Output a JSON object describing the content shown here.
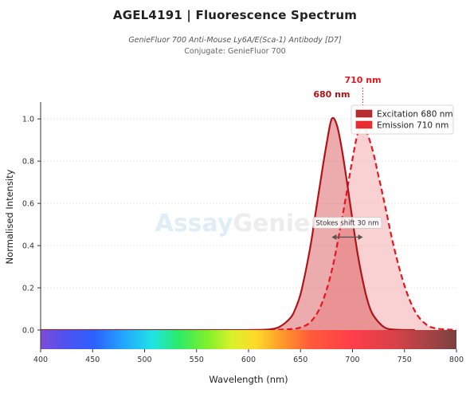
{
  "header": {
    "title": "AGEL4191  |  Fluorescence Spectrum",
    "subtitle": "GenieFluor 700 Anti-Mouse Ly6A/E(Sca-1) Antibody [D7]",
    "conjugate": "Conjugate: GenieFluor 700"
  },
  "watermark": {
    "brand_a": "Assay",
    "brand_b": "Genie"
  },
  "chart_data": {
    "type": "line",
    "xlabel": "Wavelength (nm)",
    "ylabel": "Normalised Intensity",
    "xlim": [
      400,
      800
    ],
    "ylim": [
      0,
      1.08
    ],
    "x_ticks": [
      400,
      450,
      500,
      550,
      600,
      650,
      700,
      750,
      800
    ],
    "y_ticks": [
      0.0,
      0.2,
      0.4,
      0.6,
      0.8,
      1.0
    ],
    "grid": "horizontal",
    "legend_position": "top-right",
    "series": [
      {
        "name": "Excitation  680 nm",
        "peak_label": "680 nm",
        "line_style": "solid",
        "color": "#b01418",
        "fill": "#d4484c",
        "x": [
          600,
          620,
          630,
          640,
          645,
          650,
          655,
          660,
          665,
          670,
          675,
          680,
          685,
          690,
          695,
          700,
          705,
          710,
          715,
          720,
          730,
          740,
          760
        ],
        "y": [
          0.0,
          0.003,
          0.016,
          0.056,
          0.1,
          0.17,
          0.28,
          0.41,
          0.57,
          0.73,
          0.88,
          1.0,
          0.97,
          0.85,
          0.69,
          0.52,
          0.36,
          0.23,
          0.13,
          0.07,
          0.015,
          0.002,
          0.0
        ]
      },
      {
        "name": "Emission  710 nm",
        "peak_label": "710 nm",
        "line_style": "dashed",
        "color": "#e8161c",
        "fill": "#f4a4a6",
        "x": [
          620,
          640,
          650,
          660,
          670,
          680,
          690,
          695,
          700,
          705,
          710,
          715,
          720,
          725,
          730,
          740,
          750,
          760,
          770,
          780,
          800
        ],
        "y": [
          0.0,
          0.004,
          0.012,
          0.04,
          0.12,
          0.28,
          0.53,
          0.67,
          0.81,
          0.93,
          0.97,
          0.92,
          0.84,
          0.73,
          0.62,
          0.39,
          0.21,
          0.09,
          0.03,
          0.008,
          0.0
        ]
      }
    ],
    "annotations": {
      "stokes_shift_label": "Stokes shift  30 nm",
      "stokes_from": 680,
      "stokes_to": 710,
      "stokes_y": 0.44
    }
  }
}
